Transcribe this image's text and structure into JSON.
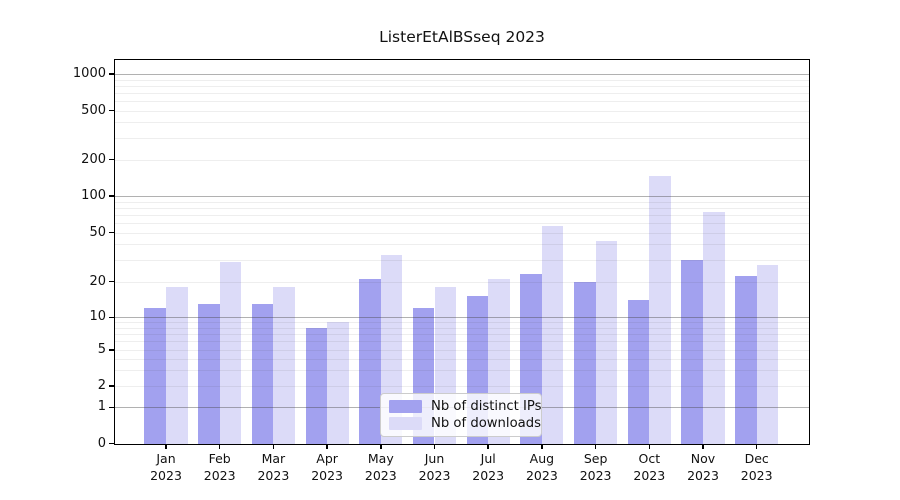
{
  "title": "ListerEtAlBSseq 2023",
  "colors": {
    "bar_distinct_ips": "#a2a1ef",
    "bar_downloads": "#dcdbf8",
    "grid_major": "#b3b3b3",
    "grid_minor": "#efefef",
    "axis": "#000000",
    "text": "#111111",
    "legend_border": "#cccccc",
    "background": "#ffffff"
  },
  "legend": {
    "items": [
      {
        "label": "Nb of distinct IPs",
        "swatch_color": "#a2a1ef"
      },
      {
        "label": "Nb of downloads",
        "swatch_color": "#dcdbf8"
      }
    ]
  },
  "chart_data": {
    "type": "bar",
    "title": "ListerEtAlBSseq 2023",
    "categories": [
      "Jan 2023",
      "Feb 2023",
      "Mar 2023",
      "Apr 2023",
      "May 2023",
      "Jun 2023",
      "Jul 2023",
      "Aug 2023",
      "Sep 2023",
      "Oct 2023",
      "Nov 2023",
      "Dec 2023"
    ],
    "series": [
      {
        "name": "Nb of distinct IPs",
        "color": "#a2a1ef",
        "values": [
          12,
          13,
          13,
          8,
          21,
          12,
          15,
          23,
          20,
          14,
          30,
          22
        ]
      },
      {
        "name": "Nb of downloads",
        "color": "#dcdbf8",
        "values": [
          18,
          29,
          18,
          9,
          33,
          18,
          21,
          57,
          43,
          145,
          74,
          27
        ]
      }
    ],
    "xlabel": "",
    "ylabel": "",
    "yscale": "symlog-like (log above 1, compressed linear near 0)",
    "ytick_values": [
      0,
      1,
      2,
      5,
      10,
      20,
      50,
      100,
      200,
      500,
      1000
    ],
    "ytick_labels": [
      "0",
      "1",
      "2",
      "5",
      "10",
      "20",
      "50",
      "100",
      "200",
      "500",
      "1000"
    ],
    "ylim": [
      0,
      1400
    ],
    "grid": true,
    "grid_major_at": [
      1,
      10,
      100,
      1000
    ],
    "legend_position": "lower center, inside axes"
  }
}
